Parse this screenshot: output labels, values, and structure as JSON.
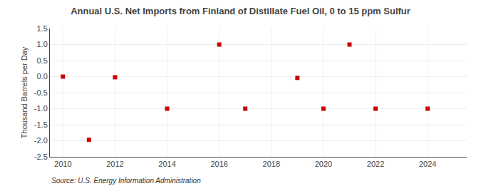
{
  "chart_data": {
    "type": "scatter",
    "title": "Annual U.S. Net Imports from Finland of Distillate Fuel Oil, 0 to 15 ppm Sulfur",
    "ylabel": "Thousand Barrels per Day",
    "annotations": [
      "Source: U.S. Energy Information Administration"
    ],
    "x": [
      2010,
      2011,
      2012,
      2014,
      2016,
      2017,
      2019,
      2020,
      2021,
      2022,
      2024
    ],
    "values": [
      0.0,
      -1.97,
      -0.02,
      -1.0,
      1.0,
      -1.0,
      -0.04,
      -1.0,
      1.0,
      -1.0,
      -1.0
    ],
    "color": "#cc0000",
    "marker": "square",
    "xlim": [
      2009.5,
      2025.5
    ],
    "ylim": [
      -2.5,
      1.5
    ],
    "xticks": [
      2010,
      2012,
      2014,
      2016,
      2018,
      2020,
      2022,
      2024
    ],
    "yticks": [
      -2.5,
      {
        "value": -2.0,
        "label": "-2.0"
      },
      -1.5,
      {
        "value": -1.0,
        "label": "-1.0"
      },
      -0.5,
      {
        "value": 0.0,
        "label": "0.0"
      },
      0.5,
      {
        "value": 1.0,
        "label": "1.0"
      },
      1.5
    ],
    "grid": true
  }
}
